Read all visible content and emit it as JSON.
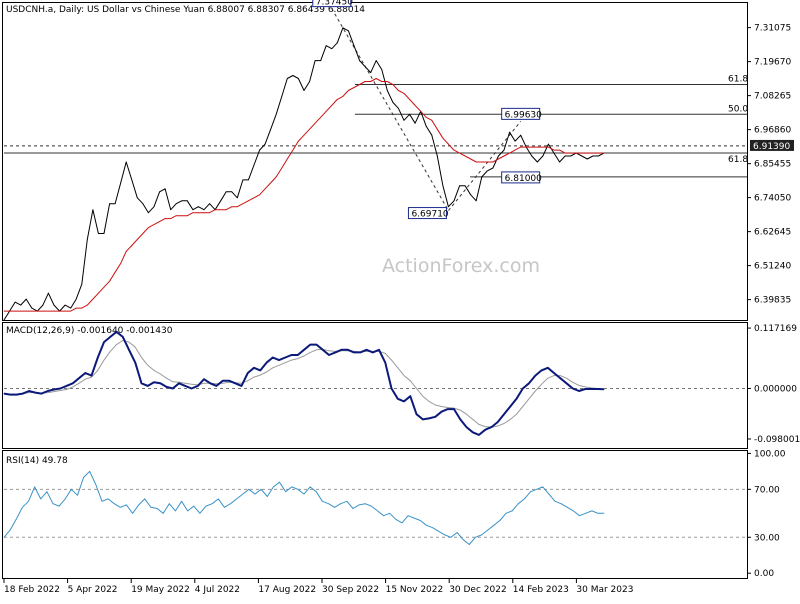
{
  "window": {
    "title": "USDCNH.a, Daily:  US Dollar vs Chinese Yuan  6.88007 6.88307 6.86439 6.88014"
  },
  "watermark": "ActionForex.com",
  "colors": {
    "price": "#000000",
    "ma": "#cc1111",
    "macd": "#0b1a7a",
    "signal": "#9a9a9a",
    "rsi": "#3a93c8",
    "level": "#333333",
    "label_fill": "#1a2a8c"
  },
  "chart_data": [
    {
      "type": "line",
      "title": "USDCNH.a, Daily:  US Dollar vs Chinese Yuan  6.88007 6.88307 6.86439 6.88014",
      "ylim": [
        6.33,
        7.39
      ],
      "yticks": [
        "7.31075",
        "7.19670",
        "7.08265",
        "6.96860",
        "6.85455",
        "6.74050",
        "6.62645",
        "6.51240",
        "6.39835"
      ],
      "xticks": [
        "18 Feb 2022",
        "5 Apr 2022",
        "19 May 2022",
        "4 Jul 2022",
        "17 Aug 2022",
        "30 Sep 2022",
        "15 Nov 2022",
        "30 Dec 2022",
        "14 Feb 2023",
        "30 Mar 2023"
      ],
      "series": [
        {
          "values": [
            6.33,
            6.36,
            6.39,
            6.38,
            6.4,
            6.37,
            6.36,
            6.38,
            6.42,
            6.38,
            6.36,
            6.38,
            6.37,
            6.4,
            6.45,
            6.6,
            6.7,
            6.62,
            6.62,
            6.72,
            6.72,
            6.79,
            6.86,
            6.8,
            6.74,
            6.72,
            6.69,
            6.71,
            6.76,
            6.77,
            6.7,
            6.72,
            6.73,
            6.73,
            6.7,
            6.71,
            6.7,
            6.72,
            6.7,
            6.73,
            6.76,
            6.76,
            6.74,
            6.8,
            6.8,
            6.85,
            6.9,
            6.92,
            6.97,
            7.02,
            7.08,
            7.14,
            7.15,
            7.14,
            7.1,
            7.13,
            7.2,
            7.2,
            7.25,
            7.24,
            7.26,
            7.31,
            7.3,
            7.25,
            7.2,
            7.18,
            7.16,
            7.2,
            7.17,
            7.1,
            7.06,
            7.04,
            7.0,
            7.02,
            6.99,
            7.03,
            6.98,
            6.95,
            6.88,
            6.78,
            6.71,
            6.73,
            6.78,
            6.78,
            6.75,
            6.73,
            6.81,
            6.83,
            6.84,
            6.88,
            6.9,
            6.96,
            6.93,
            6.95,
            6.91,
            6.88,
            6.86,
            6.88,
            6.92,
            6.89,
            6.86,
            6.88,
            6.88,
            6.89,
            6.88,
            6.87,
            6.88,
            6.88,
            6.89
          ]
        },
        {
          "values": [
            6.36,
            6.36,
            6.36,
            6.36,
            6.36,
            6.36,
            6.36,
            6.36,
            6.36,
            6.36,
            6.36,
            6.36,
            6.36,
            6.37,
            6.37,
            6.38,
            6.4,
            6.42,
            6.44,
            6.46,
            6.49,
            6.52,
            6.56,
            6.58,
            6.6,
            6.62,
            6.64,
            6.65,
            6.66,
            6.67,
            6.67,
            6.68,
            6.68,
            6.68,
            6.69,
            6.69,
            6.69,
            6.69,
            6.7,
            6.7,
            6.7,
            6.71,
            6.71,
            6.72,
            6.73,
            6.74,
            6.75,
            6.77,
            6.79,
            6.81,
            6.84,
            6.87,
            6.9,
            6.93,
            6.95,
            6.97,
            6.99,
            7.01,
            7.03,
            7.05,
            7.07,
            7.08,
            7.1,
            7.11,
            7.12,
            7.13,
            7.13,
            7.14,
            7.13,
            7.13,
            7.12,
            7.1,
            7.09,
            7.07,
            7.05,
            7.03,
            7.01,
            7.0,
            6.97,
            6.94,
            6.92,
            6.9,
            6.89,
            6.88,
            6.87,
            6.86,
            6.86,
            6.86,
            6.86,
            6.87,
            6.88,
            6.89,
            6.9,
            6.91,
            6.91,
            6.91,
            6.91,
            6.91,
            6.91,
            6.9,
            6.9,
            6.89,
            6.89,
            6.89,
            6.89,
            6.89,
            6.89,
            6.89,
            6.89
          ]
        }
      ],
      "annotations": [
        {
          "text": "7.37450",
          "x": 59,
          "y": 7.3745
        },
        {
          "text": "6.99630",
          "x": 93,
          "y": 6.9963
        },
        {
          "text": "6.81000",
          "x": 93,
          "y": 6.81
        },
        {
          "text": "6.69710",
          "x": 80,
          "y": 6.6971
        },
        {
          "text": "61.8",
          "y": 7.12
        },
        {
          "text": "50.0",
          "y": 7.02
        },
        {
          "text": "61.8",
          "y": 6.85
        },
        {
          "text": "6.91390",
          "y": 6.9139
        }
      ],
      "hlines": [
        7.12,
        7.02,
        6.9139,
        6.89,
        6.81
      ],
      "hline_styles": [
        "solid",
        "solid",
        "dashed",
        "solid",
        "solid"
      ],
      "current_price": "6.91390",
      "watermark": "ActionForex.com"
    },
    {
      "type": "line",
      "title": "MACD(12,26,9) -0.001640 -0.001430",
      "ylim": [
        -0.1155,
        0.127
      ],
      "yticks": [
        "0.117169",
        "0.000000",
        "-0.098001"
      ],
      "series": [
        {
          "values": [
            -0.01,
            -0.012,
            -0.012,
            -0.01,
            -0.005,
            -0.008,
            -0.01,
            -0.005,
            -0.002,
            0.0,
            0.005,
            0.01,
            0.02,
            0.03,
            0.025,
            0.06,
            0.09,
            0.1,
            0.11,
            0.1,
            0.075,
            0.05,
            0.01,
            0.005,
            0.012,
            0.01,
            0.003,
            0.0,
            0.01,
            0.005,
            0.0,
            0.005,
            0.018,
            0.01,
            0.005,
            0.015,
            0.015,
            0.01,
            0.005,
            0.03,
            0.04,
            0.035,
            0.05,
            0.06,
            0.055,
            0.06,
            0.065,
            0.065,
            0.075,
            0.085,
            0.085,
            0.075,
            0.065,
            0.07,
            0.075,
            0.075,
            0.07,
            0.07,
            0.075,
            0.07,
            0.075,
            0.05,
            0.0,
            -0.02,
            -0.025,
            -0.015,
            -0.05,
            -0.06,
            -0.058,
            -0.055,
            -0.045,
            -0.04,
            -0.04,
            -0.06,
            -0.075,
            -0.085,
            -0.09,
            -0.08,
            -0.075,
            -0.065,
            -0.05,
            -0.035,
            -0.02,
            0.0,
            0.01,
            0.025,
            0.035,
            0.04,
            0.03,
            0.02,
            0.01,
            0.0,
            -0.005,
            -0.001,
            -0.001,
            -0.001,
            -0.0016
          ]
        },
        {
          "values": [
            -0.01,
            -0.011,
            -0.011,
            -0.01,
            -0.008,
            -0.008,
            -0.009,
            -0.008,
            -0.006,
            -0.004,
            -0.002,
            0.003,
            0.01,
            0.018,
            0.022,
            0.035,
            0.055,
            0.072,
            0.085,
            0.093,
            0.09,
            0.08,
            0.06,
            0.045,
            0.035,
            0.028,
            0.02,
            0.013,
            0.012,
            0.01,
            0.008,
            0.007,
            0.01,
            0.01,
            0.009,
            0.01,
            0.012,
            0.011,
            0.01,
            0.015,
            0.022,
            0.026,
            0.032,
            0.04,
            0.045,
            0.05,
            0.055,
            0.058,
            0.063,
            0.07,
            0.075,
            0.076,
            0.073,
            0.072,
            0.073,
            0.073,
            0.072,
            0.071,
            0.072,
            0.072,
            0.072,
            0.068,
            0.055,
            0.04,
            0.025,
            0.015,
            0.0,
            -0.015,
            -0.025,
            -0.032,
            -0.035,
            -0.037,
            -0.038,
            -0.042,
            -0.05,
            -0.06,
            -0.07,
            -0.074,
            -0.075,
            -0.073,
            -0.068,
            -0.06,
            -0.05,
            -0.035,
            -0.02,
            -0.005,
            0.008,
            0.02,
            0.025,
            0.025,
            0.02,
            0.012,
            0.006,
            0.003,
            0.001,
            0.0,
            -0.0014
          ]
        }
      ]
    },
    {
      "type": "line",
      "title": "RSI(14) 49.78",
      "ylim": [
        -4,
        102
      ],
      "yticks": [
        "100.00",
        "70.00",
        "30.00",
        "0.00"
      ],
      "levels": [
        70,
        30
      ],
      "series": [
        {
          "values": [
            30,
            36,
            45,
            55,
            60,
            72,
            62,
            68,
            58,
            56,
            62,
            70,
            65,
            80,
            85,
            74,
            60,
            62,
            58,
            55,
            57,
            50,
            57,
            62,
            55,
            54,
            50,
            58,
            52,
            60,
            52,
            56,
            50,
            56,
            58,
            62,
            55,
            58,
            62,
            66,
            70,
            66,
            70,
            64,
            72,
            76,
            68,
            72,
            70,
            66,
            72,
            68,
            60,
            58,
            55,
            58,
            60,
            54,
            57,
            58,
            56,
            52,
            48,
            50,
            45,
            42,
            48,
            46,
            44,
            40,
            38,
            35,
            32,
            30,
            34,
            28,
            24,
            30,
            32,
            36,
            40,
            44,
            50,
            52,
            58,
            62,
            68,
            70,
            72,
            66,
            60,
            58,
            55,
            52,
            48,
            50,
            52,
            50,
            50
          ]
        }
      ]
    }
  ]
}
